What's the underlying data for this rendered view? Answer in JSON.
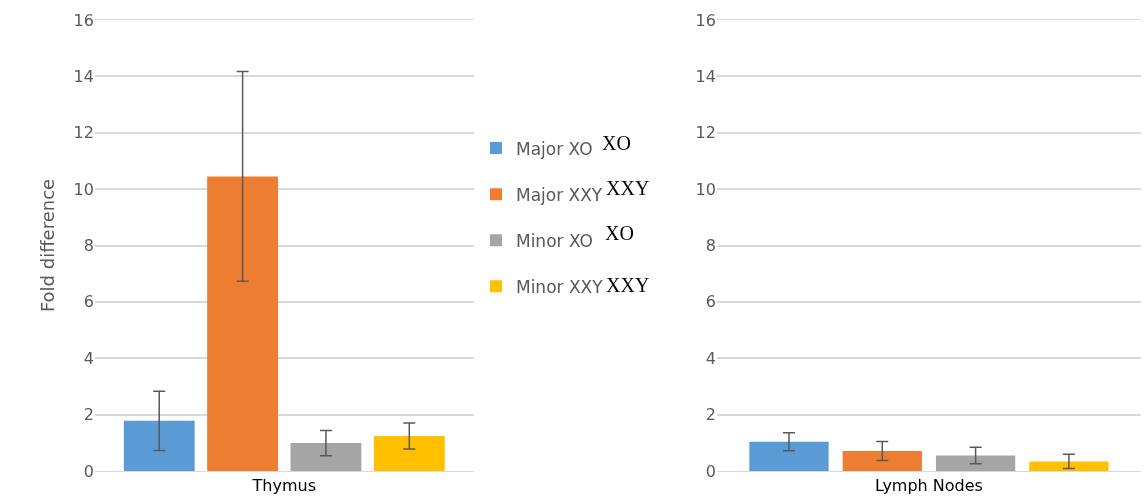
{
  "chart_data": [
    {
      "type": "bar",
      "categories": [
        "Thymus"
      ],
      "ylabel": "Fold difference",
      "ylim": [
        0,
        16
      ],
      "yticks": [
        0,
        2,
        4,
        6,
        8,
        10,
        12,
        14,
        16
      ],
      "grid": "y",
      "legend": "right",
      "series": [
        {
          "name": "Major XO",
          "color": "#5b9bd5",
          "values": [
            1.78
          ],
          "errors": [
            1.05
          ]
        },
        {
          "name": "Major XXY",
          "color": "#ed7d31",
          "values": [
            10.45
          ],
          "errors": [
            3.72
          ]
        },
        {
          "name": "Minor XO",
          "color": "#a5a5a5",
          "values": [
            0.99
          ],
          "errors": [
            0.45
          ]
        },
        {
          "name": "Minor XXY",
          "color": "#ffc000",
          "values": [
            1.24
          ],
          "errors": [
            0.46
          ]
        }
      ],
      "annotations": [
        "XO",
        "XXY",
        "XO",
        "XXY"
      ]
    },
    {
      "type": "bar",
      "categories": [
        "Lymph Nodes"
      ],
      "ylim": [
        0,
        16
      ],
      "yticks": [
        0,
        2,
        4,
        6,
        8,
        10,
        12,
        14,
        16
      ],
      "grid": "y",
      "series": [
        {
          "color": "#5b9bd5",
          "values": [
            1.04
          ],
          "errors": [
            0.32
          ]
        },
        {
          "color": "#ed7d31",
          "values": [
            0.71
          ],
          "errors": [
            0.34
          ]
        },
        {
          "color": "#a5a5a5",
          "values": [
            0.55
          ],
          "errors": [
            0.29
          ]
        },
        {
          "color": "#ffc000",
          "values": [
            0.34
          ],
          "errors": [
            0.25
          ]
        }
      ]
    }
  ]
}
